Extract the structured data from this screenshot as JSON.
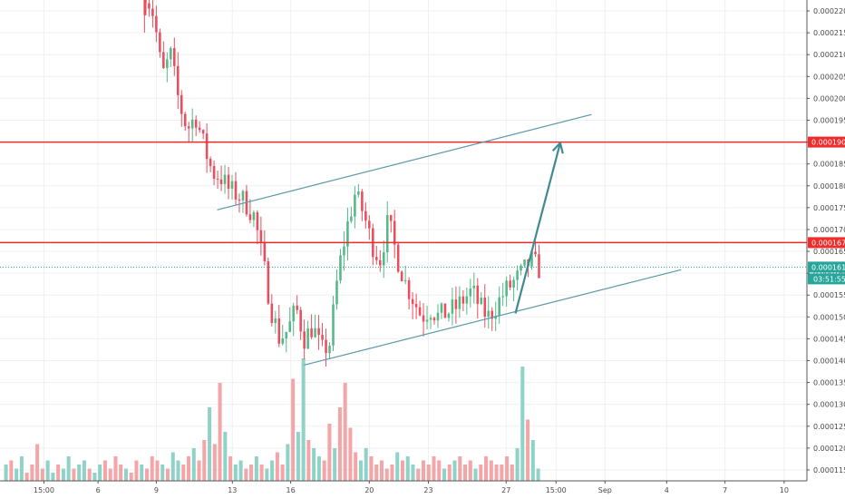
{
  "chart_data": {
    "type": "candlestick",
    "title": "",
    "xlabel": "",
    "ylabel": "",
    "ylim": [
      0.0001125,
      0.0002225
    ],
    "y_ticks": [
      "0.0002200",
      "0.0002150",
      "0.0002100",
      "0.0002050",
      "0.0002000",
      "0.0001950",
      "0.0001900",
      "0.0001850",
      "0.0001800",
      "0.0001750",
      "0.0001700",
      "0.0001650",
      "0.0001600",
      "0.0001550",
      "0.0001500",
      "0.0001450",
      "0.0001400",
      "0.0001350",
      "0.0001300",
      "0.0001250",
      "0.0001200",
      "0.0001150"
    ],
    "x_domain": [
      0,
      1000
    ],
    "x_ticks": [
      {
        "label": "15:00",
        "x": 52
      },
      {
        "label": "6",
        "x": 116
      },
      {
        "label": "9",
        "x": 185
      },
      {
        "label": "13",
        "x": 275
      },
      {
        "label": "16",
        "x": 344
      },
      {
        "label": "20",
        "x": 437
      },
      {
        "label": "23",
        "x": 507
      },
      {
        "label": "27",
        "x": 599
      },
      {
        "label": "15:00",
        "x": 658
      },
      {
        "label": "Sep",
        "x": 716
      },
      {
        "label": "4",
        "x": 789
      },
      {
        "label": "7",
        "x": 858
      },
      {
        "label": "10",
        "x": 928
      }
    ],
    "price_levels": [
      {
        "value": 0.00019,
        "label": "0.0001900",
        "color": "#ef2b2b",
        "style": "solid"
      },
      {
        "value": 0.000167,
        "label": "0.0001670",
        "color": "#ef2b2b",
        "style": "solid"
      },
      {
        "value": 0.0001614,
        "label": "0.0001614",
        "color": "#26a69a",
        "style": "dotted"
      }
    ],
    "countdown": "03:51:55",
    "trendlines": [
      {
        "x1": 257,
        "y1": 0.0001745,
        "x2": 700,
        "y2": 0.0001963
      },
      {
        "x1": 360,
        "y1": 0.000139,
        "x2": 806,
        "y2": 0.0001608
      }
    ],
    "projection_arrow": {
      "x1": 610,
      "y1": 0.0001508,
      "x2": 663,
      "y2": 0.0001898
    },
    "colors": {
      "up": "#53b987",
      "down": "#eb4d5c",
      "vol_up": "#8fd3c8",
      "vol_down": "#f4a5a8"
    },
    "candles_segments": [
      {
        "x_start": 4,
        "x_end": 170,
        "points": [
          0.00023,
          0.0002245
        ]
      },
      {
        "x_start": 170,
        "x_end": 640,
        "points": [
          0.0002245,
          0.000219,
          0.000205,
          0.00021,
          0.000199,
          0.000193,
          0.000196,
          0.000189,
          0.000183,
          0.000182,
          0.000179,
          0.000178,
          0.000176,
          0.000173,
          0.000163,
          0.000152,
          0.000145,
          0.000147,
          0.000152,
          0.000145,
          0.000148,
          0.000142,
          0.000144,
          0.00016,
          0.00017,
          0.000178,
          0.000174,
          0.000167,
          0.000163,
          0.000172,
          0.000164,
          0.000158,
          0.000154,
          0.00015,
          0.000152,
          0.00015,
          0.000151,
          0.000152,
          0.000154,
          0.000156,
          0.000152,
          0.00015,
          0.000153,
          0.000156,
          0.000158,
          0.00016,
          0.000163,
          0.000161
        ]
      }
    ],
    "volume_profile": [
      4,
      5,
      3,
      6,
      2,
      4,
      9,
      3,
      5,
      2,
      4,
      3,
      6,
      3,
      4,
      5,
      3,
      2,
      4,
      5,
      3,
      6,
      4,
      3,
      2,
      5,
      4,
      3,
      6,
      5,
      4,
      3,
      7,
      5,
      4,
      6,
      8,
      5,
      10,
      18,
      9,
      24,
      12,
      6,
      4,
      5,
      3,
      4,
      6,
      4,
      3,
      5,
      7,
      4,
      9,
      25,
      12,
      30,
      10,
      8,
      6,
      5,
      14,
      8,
      18,
      24,
      13,
      7,
      5,
      8,
      6,
      4,
      5,
      3,
      4,
      7,
      5,
      6,
      4,
      3,
      5,
      4,
      6,
      5,
      3,
      4,
      5,
      6,
      4,
      5,
      3,
      4,
      6,
      5,
      4,
      4,
      6,
      4,
      8,
      28,
      15,
      10,
      3
    ]
  }
}
